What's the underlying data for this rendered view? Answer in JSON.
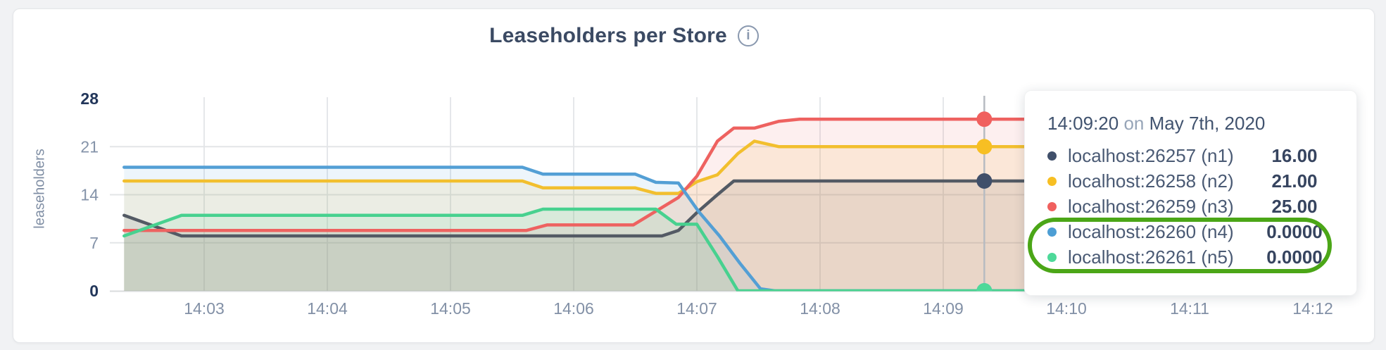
{
  "header": {
    "title": "Leaseholders per Store",
    "info_glyph": "i"
  },
  "chart_data": {
    "type": "area",
    "title": "Leaseholders per Store",
    "xlabel": "",
    "ylabel": "leaseholders",
    "ylim": [
      0,
      28
    ],
    "grid": true,
    "legend_position": "tooltip",
    "x_ticks": [
      {
        "t": 180,
        "label": "14:03"
      },
      {
        "t": 240,
        "label": "14:04"
      },
      {
        "t": 300,
        "label": "14:05"
      },
      {
        "t": 360,
        "label": "14:06"
      },
      {
        "t": 420,
        "label": "14:07"
      },
      {
        "t": 480,
        "label": "14:08"
      },
      {
        "t": 540,
        "label": "14:09"
      },
      {
        "t": 600,
        "label": "14:10"
      },
      {
        "t": 660,
        "label": "14:11"
      },
      {
        "t": 720,
        "label": "14:12"
      }
    ],
    "y_ticks": [
      {
        "v": 0,
        "label": "0",
        "bold": true,
        "grid": false
      },
      {
        "v": 7,
        "label": "7",
        "bold": false,
        "grid": true
      },
      {
        "v": 14,
        "label": "14",
        "bold": false,
        "grid": true
      },
      {
        "v": 21,
        "label": "21",
        "bold": false,
        "grid": true
      },
      {
        "v": 28,
        "label": "28",
        "bold": true,
        "grid": false
      }
    ],
    "series": [
      {
        "id": "n1",
        "name": "localhost:26257 (n1)",
        "color": "#535a64",
        "dot_color": "#404f6a",
        "fill_opacity": 0.13,
        "points": [
          [
            141,
            11
          ],
          [
            169,
            8
          ],
          [
            403,
            8
          ],
          [
            411,
            8.8
          ],
          [
            420,
            11.4
          ],
          [
            430,
            14
          ],
          [
            438,
            16
          ],
          [
            725,
            16
          ]
        ]
      },
      {
        "id": "n2",
        "name": "localhost:26258 (n2)",
        "color": "#f2bf2e",
        "dot_color": "#f7bf23",
        "fill_opacity": 0.12,
        "points": [
          [
            141,
            16
          ],
          [
            335,
            16
          ],
          [
            345,
            15
          ],
          [
            390,
            15
          ],
          [
            400,
            14.2
          ],
          [
            411,
            14.2
          ],
          [
            420,
            15.9
          ],
          [
            430,
            16.9
          ],
          [
            440,
            20
          ],
          [
            448,
            21.8
          ],
          [
            460,
            21
          ],
          [
            725,
            21
          ]
        ]
      },
      {
        "id": "n3",
        "name": "localhost:26259 (n3)",
        "color": "#ee6260",
        "dot_color": "#f0605e",
        "fill_opacity": 0.1,
        "points": [
          [
            141,
            8.8
          ],
          [
            337,
            8.8
          ],
          [
            347,
            9.6
          ],
          [
            389,
            9.6
          ],
          [
            400,
            11.6
          ],
          [
            411,
            13.6
          ],
          [
            420,
            16.7
          ],
          [
            430,
            21.8
          ],
          [
            438,
            23.7
          ],
          [
            448,
            23.7
          ],
          [
            460,
            24.7
          ],
          [
            470,
            25
          ],
          [
            725,
            25
          ]
        ]
      },
      {
        "id": "n4",
        "name": "localhost:26260 (n4)",
        "color": "#539fd5",
        "dot_color": "#4d9ed4",
        "fill_opacity": 0.1,
        "points": [
          [
            141,
            18
          ],
          [
            335,
            18
          ],
          [
            345,
            17
          ],
          [
            390,
            17
          ],
          [
            400,
            15.8
          ],
          [
            411,
            15.7
          ],
          [
            421,
            11.5
          ],
          [
            431,
            8
          ],
          [
            441,
            4
          ],
          [
            451,
            0.3
          ],
          [
            458,
            0
          ],
          [
            725,
            0
          ]
        ]
      },
      {
        "id": "n5",
        "name": "localhost:26261 (n5)",
        "color": "#47d18f",
        "dot_color": "#4ed999",
        "fill_opacity": 0.11,
        "points": [
          [
            141,
            8
          ],
          [
            169,
            11
          ],
          [
            335,
            11
          ],
          [
            345,
            11.9
          ],
          [
            400,
            11.9
          ],
          [
            410,
            9.7
          ],
          [
            420,
            9.7
          ],
          [
            430,
            5
          ],
          [
            440,
            0
          ],
          [
            725,
            0
          ]
        ]
      }
    ],
    "hover": {
      "t": 560,
      "time_label": "14:09:20",
      "values": [
        16,
        21,
        25,
        0,
        0
      ]
    }
  },
  "tooltip": {
    "time": "14:09:20",
    "on_word": "on",
    "date": "May 7th, 2020",
    "rows": [
      {
        "label": "localhost:26257 (n1)",
        "value": "16.00",
        "color": "#404f6a",
        "highlighted": false
      },
      {
        "label": "localhost:26258 (n2)",
        "value": "21.00",
        "color": "#f7bf23",
        "highlighted": false
      },
      {
        "label": "localhost:26259 (n3)",
        "value": "25.00",
        "color": "#f0605e",
        "highlighted": false
      },
      {
        "label": "localhost:26260 (n4)",
        "value": "0.0000",
        "color": "#4d9ed4",
        "highlighted": true
      },
      {
        "label": "localhost:26261 (n5)",
        "value": "0.0000",
        "color": "#4ed999",
        "highlighted": true
      }
    ],
    "annotation_color": "#4ba617"
  }
}
